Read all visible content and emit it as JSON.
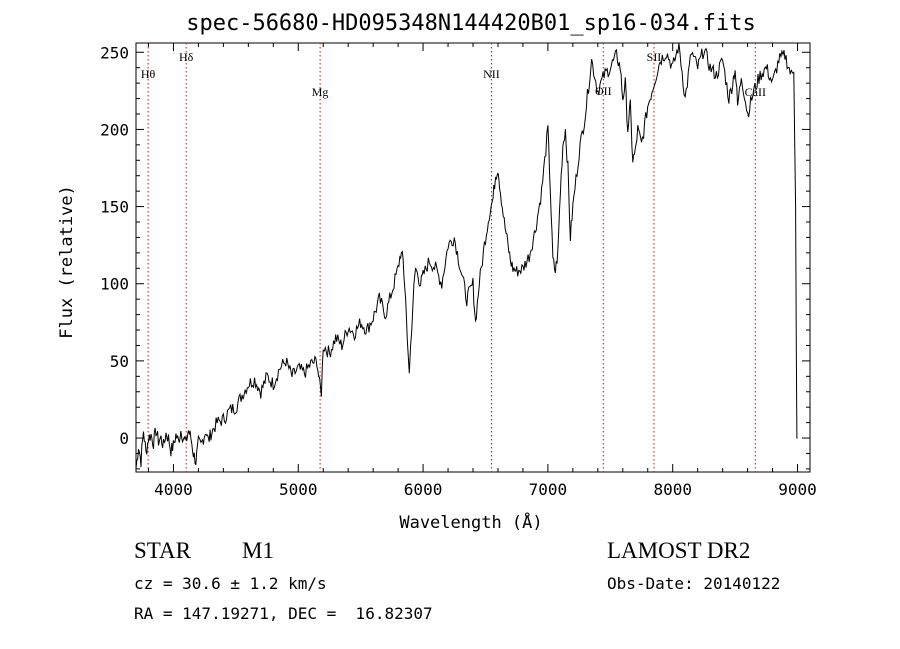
{
  "chart_data": {
    "type": "line",
    "title": "spec-56680-HD095348N144420B01_sp16-034.fits",
    "xlabel": "Wavelength (Å)",
    "ylabel": "Flux (relative)",
    "xlim": [
      3700,
      9100
    ],
    "ylim": [
      -22,
      256
    ],
    "x_ticks": [
      4000,
      5000,
      6000,
      7000,
      8000,
      9000
    ],
    "y_ticks": [
      0,
      50,
      100,
      150,
      200,
      250
    ],
    "grid": false,
    "series": [
      {
        "x": [
          3700,
          3720,
          3740,
          3760,
          3780,
          3800,
          3820,
          3840,
          3860,
          3880,
          3900,
          3920,
          3940,
          3960,
          3980,
          4000,
          4020,
          4040,
          4060,
          4080,
          4100,
          4120,
          4140,
          4160,
          4180,
          4200,
          4220,
          4240,
          4260,
          4280,
          4300,
          4350,
          4400,
          4450,
          4500,
          4550,
          4600,
          4650,
          4700,
          4750,
          4800,
          4850,
          4900,
          4950,
          5000,
          5050,
          5100,
          5150,
          5170,
          5185,
          5200,
          5250,
          5300,
          5350,
          5400,
          5450,
          5500,
          5550,
          5600,
          5650,
          5700,
          5750,
          5800,
          5820,
          5840,
          5860,
          5880,
          5890,
          5900,
          5910,
          5920,
          5940,
          5960,
          5980,
          6000,
          6050,
          6100,
          6150,
          6200,
          6250,
          6300,
          6350,
          6400,
          6420,
          6450,
          6500,
          6530,
          6560,
          6580,
          6600,
          6620,
          6650,
          6680,
          6700,
          6720,
          6750,
          6800,
          6850,
          6900,
          6950,
          7000,
          7020,
          7040,
          7060,
          7080,
          7100,
          7120,
          7140,
          7160,
          7180,
          7200,
          7250,
          7300,
          7350,
          7400,
          7450,
          7500,
          7550,
          7580,
          7600,
          7620,
          7640,
          7660,
          7680,
          7700,
          7720,
          7750,
          7800,
          7850,
          7900,
          7950,
          8000,
          8050,
          8100,
          8150,
          8200,
          8250,
          8300,
          8350,
          8400,
          8450,
          8480,
          8500,
          8520,
          8550,
          8600,
          8650,
          8700,
          8750,
          8800,
          8850,
          8900,
          8950,
          8970,
          8985,
          8990,
          8995,
          9000
        ],
        "y": [
          -20,
          -5,
          -15,
          5,
          -10,
          0,
          2,
          -3,
          5,
          -2,
          0,
          -5,
          3,
          0,
          -8,
          -5,
          2,
          -2,
          5,
          0,
          -3,
          5,
          0,
          -10,
          -15,
          -3,
          -5,
          0,
          5,
          -2,
          3,
          10,
          12,
          18,
          20,
          28,
          35,
          38,
          30,
          40,
          35,
          45,
          50,
          40,
          45,
          42,
          48,
          50,
          35,
          30,
          60,
          55,
          65,
          60,
          72,
          68,
          75,
          70,
          78,
          90,
          80,
          95,
          110,
          120,
          115,
          90,
          55,
          42,
          60,
          70,
          90,
          110,
          105,
          100,
          105,
          115,
          110,
          100,
          125,
          130,
          110,
          90,
          100,
          75,
          100,
          130,
          145,
          155,
          170,
          175,
          160,
          140,
          125,
          115,
          110,
          108,
          110,
          118,
          135,
          160,
          200,
          160,
          115,
          108,
          120,
          160,
          190,
          200,
          175,
          130,
          150,
          185,
          210,
          245,
          225,
          235,
          240,
          248,
          240,
          220,
          230,
          200,
          215,
          180,
          185,
          200,
          190,
          215,
          230,
          245,
          250,
          240,
          255,
          220,
          250,
          240,
          252,
          240,
          235,
          245,
          220,
          230,
          240,
          215,
          235,
          210,
          225,
          235,
          240,
          230,
          245,
          248,
          235,
          240,
          150,
          60,
          0,
          0
        ]
      }
    ],
    "lines": [
      {
        "label": "Hθ",
        "x": 3797
      },
      {
        "label": "Hδ",
        "x": 4102
      },
      {
        "label": "Mg",
        "x": 5175
      },
      {
        "label": "NII",
        "x": 6548
      },
      {
        "label": "OII",
        "x": 7444
      },
      {
        "label": "SII",
        "x": 7850
      },
      {
        "label": "CaII",
        "x": 8662
      }
    ]
  },
  "info": {
    "class": "STAR",
    "subclass": "M1",
    "survey": "LAMOST DR2",
    "cz": "cz = 30.6 ± 1.2 km/s",
    "obs_date": "Obs-Date: 20140122",
    "coords": "RA = 147.19271, DEC =  16.82307"
  }
}
